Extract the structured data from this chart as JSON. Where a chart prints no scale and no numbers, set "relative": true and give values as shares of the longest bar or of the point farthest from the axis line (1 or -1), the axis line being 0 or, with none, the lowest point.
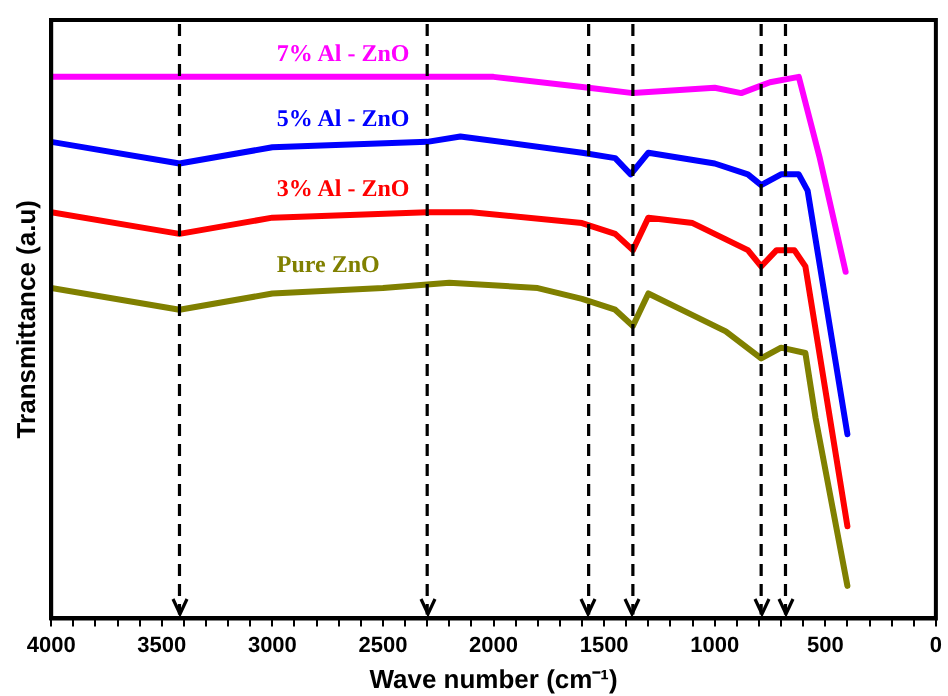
{
  "chart_data": {
    "type": "line",
    "relative": true,
    "xlabel": "Wave number (cm⁻¹)",
    "ylabel": "Transmittance (a.u)",
    "xlim": [
      4000,
      0
    ],
    "xticks": [
      4000,
      {
        "value": 3900,
        "label": null
      },
      {
        "value": 3800,
        "label": null
      },
      {
        "value": 3700,
        "label": null
      },
      {
        "value": 3600,
        "label": null
      },
      3500,
      {
        "value": 3400,
        "label": null
      },
      {
        "value": 3300,
        "label": null
      },
      {
        "value": 3200,
        "label": null
      },
      {
        "value": 3100,
        "label": null
      },
      3000,
      {
        "value": 2900,
        "label": null
      },
      {
        "value": 2800,
        "label": null
      },
      {
        "value": 2700,
        "label": null
      },
      {
        "value": 2600,
        "label": null
      },
      2500,
      {
        "value": 2400,
        "label": null
      },
      {
        "value": 2300,
        "label": null
      },
      {
        "value": 2200,
        "label": null
      },
      {
        "value": 2100,
        "label": null
      },
      2000,
      {
        "value": 1900,
        "label": null
      },
      {
        "value": 1800,
        "label": null
      },
      {
        "value": 1700,
        "label": null
      },
      {
        "value": 1600,
        "label": null
      },
      1500,
      {
        "value": 1400,
        "label": null
      },
      {
        "value": 1300,
        "label": null
      },
      {
        "value": 1200,
        "label": null
      },
      {
        "value": 1100,
        "label": null
      },
      1000,
      {
        "value": 900,
        "label": null
      },
      {
        "value": 800,
        "label": null
      },
      {
        "value": 700,
        "label": null
      },
      {
        "value": 600,
        "label": null
      },
      500,
      {
        "value": 400,
        "label": null
      },
      {
        "value": 300,
        "label": null
      },
      {
        "value": 200,
        "label": null
      },
      {
        "value": 100,
        "label": null
      },
      0
    ],
    "grid": false,
    "legend": false,
    "marker": "none",
    "line_style": "solid",
    "series": [
      {
        "name": "7% Al - ZnO",
        "color": "#ff00ff",
        "x": [
          4000,
          3420,
          2300,
          2200,
          2000,
          1570,
          1370,
          1000,
          880,
          750,
          620,
          525,
          408
        ],
        "values": [
          1.0,
          1.0,
          1.0,
          1.0,
          1.0,
          0.98,
          0.97,
          0.98,
          0.97,
          0.99,
          1.0,
          0.85,
          0.64
        ]
      },
      {
        "name": "5% Al - ZnO",
        "color": "#0000ff",
        "x": [
          4000,
          3420,
          3000,
          2300,
          2150,
          1600,
          1450,
          1380,
          1300,
          1000,
          850,
          790,
          700,
          620,
          580,
          400
        ],
        "values": [
          0.88,
          0.84,
          0.87,
          0.88,
          0.89,
          0.86,
          0.85,
          0.82,
          0.86,
          0.84,
          0.82,
          0.8,
          0.82,
          0.82,
          0.79,
          0.34
        ]
      },
      {
        "name": "3% Al - ZnO",
        "color": "#ff0000",
        "x": [
          4000,
          3420,
          3000,
          2300,
          2100,
          1600,
          1450,
          1370,
          1300,
          1100,
          850,
          790,
          720,
          640,
          590,
          400
        ],
        "values": [
          0.75,
          0.71,
          0.74,
          0.75,
          0.75,
          0.73,
          0.71,
          0.68,
          0.74,
          0.73,
          0.68,
          0.65,
          0.68,
          0.68,
          0.65,
          0.17
        ]
      },
      {
        "name": "Pure ZnO",
        "color": "#808000",
        "x": [
          4000,
          3420,
          3000,
          2500,
          2200,
          1800,
          1600,
          1450,
          1370,
          1300,
          1100,
          950,
          790,
          700,
          590,
          544,
          400
        ],
        "values": [
          0.61,
          0.57,
          0.6,
          0.61,
          0.62,
          0.61,
          0.59,
          0.57,
          0.54,
          0.6,
          0.56,
          0.53,
          0.48,
          0.5,
          0.49,
          0.37,
          0.06
        ]
      }
    ],
    "ref_lines": [
      {
        "axis": "x",
        "value": 3420,
        "color": "#000000",
        "line_style": "dashed"
      },
      {
        "axis": "x",
        "value": 2300,
        "color": "#000000",
        "line_style": "dashed"
      },
      {
        "axis": "x",
        "value": 1570,
        "color": "#000000",
        "line_style": "dashed"
      },
      {
        "axis": "x",
        "value": 1370,
        "color": "#000000",
        "line_style": "dashed"
      },
      {
        "axis": "x",
        "value": 790,
        "color": "#000000",
        "line_style": "dashed"
      },
      {
        "axis": "x",
        "value": 680,
        "color": "#000000",
        "line_style": "dashed"
      }
    ]
  }
}
